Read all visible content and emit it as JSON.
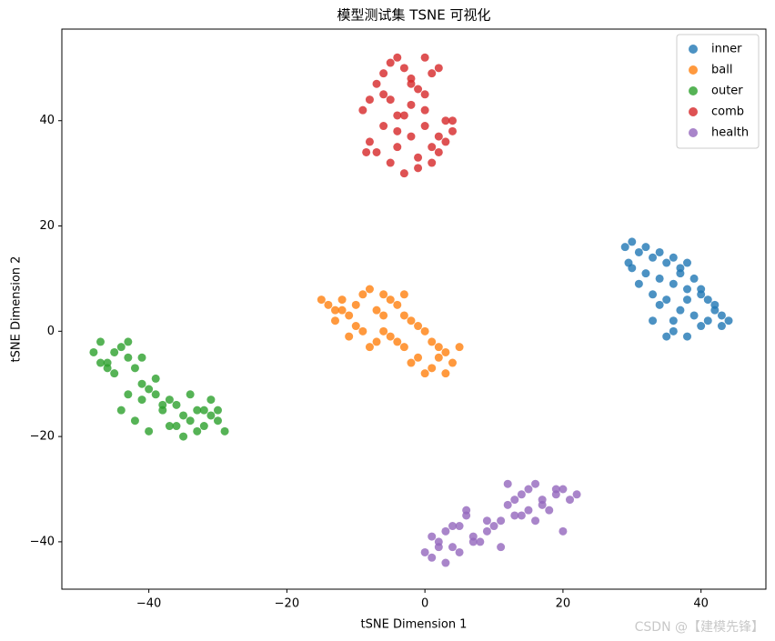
{
  "chart_data": {
    "type": "scatter",
    "title": "模型测试集 TSNE 可视化",
    "x_label": "tSNE Dimension 1",
    "y_label": "tSNE Dimension 2",
    "xlim": [
      -52.6,
      49.4
    ],
    "ylim": [
      -49.0,
      57.4
    ],
    "xticks": [
      {
        "value": -40,
        "label": "−40"
      },
      {
        "value": -20,
        "label": "−20"
      },
      0,
      20,
      40
    ],
    "yticks": [
      {
        "value": -40,
        "label": "−40"
      },
      {
        "value": -20,
        "label": "−20"
      },
      0,
      20,
      40
    ],
    "legend": "upper-right",
    "grid": false,
    "annotation": "CSDN @【建模先锋】",
    "series": [
      {
        "name": "inner",
        "color": "#1f77b4",
        "x": [
          29,
          30,
          31,
          32,
          33,
          34,
          35,
          36,
          37,
          38,
          30,
          32,
          34,
          36,
          38,
          40,
          41,
          42,
          43,
          44,
          31,
          33,
          35,
          37,
          39,
          41,
          43,
          36,
          38,
          40,
          34,
          36,
          37,
          39,
          42,
          35,
          33,
          40,
          38,
          29.5
        ],
        "y": [
          16,
          17,
          15,
          16,
          14,
          15,
          13,
          14,
          12,
          13,
          12,
          11,
          10,
          9,
          8,
          7,
          6,
          5,
          3,
          2,
          9,
          7,
          6,
          4,
          3,
          2,
          1,
          0,
          -1,
          1,
          5,
          2,
          11,
          10,
          4,
          -1,
          2,
          8,
          6,
          13
        ]
      },
      {
        "name": "ball",
        "color": "#ff7f0e",
        "x": [
          -15,
          -14,
          -13,
          -12,
          -11,
          -10,
          -9,
          -8,
          -7,
          -6,
          -5,
          -4,
          -3,
          -2,
          -1,
          0,
          1,
          2,
          3,
          4,
          5,
          -13,
          -11,
          -9,
          -7,
          -5,
          -3,
          -1,
          1,
          3,
          -10,
          -8,
          -6,
          -4,
          -2,
          0,
          2,
          -12,
          -6,
          -3
        ],
        "y": [
          6,
          5,
          4,
          6,
          3,
          5,
          7,
          8,
          4,
          7,
          6,
          5,
          3,
          2,
          1,
          0,
          -2,
          -3,
          -4,
          -6,
          -3,
          2,
          -1,
          0,
          -2,
          -1,
          -3,
          -5,
          -7,
          -8,
          1,
          -3,
          0,
          -2,
          -6,
          -8,
          -5,
          4,
          3,
          7
        ]
      },
      {
        "name": "outer",
        "color": "#2ca02c",
        "x": [
          -48,
          -47,
          -46,
          -45,
          -44,
          -43,
          -42,
          -41,
          -40,
          -39,
          -38,
          -37,
          -36,
          -35,
          -34,
          -33,
          -32,
          -31,
          -30,
          -29,
          -47,
          -45,
          -43,
          -41,
          -39,
          -37,
          -35,
          -33,
          -31,
          -44,
          -42,
          -40,
          -38,
          -36,
          -34,
          -32,
          -43,
          -41,
          -46,
          -30
        ],
        "y": [
          -4,
          -2,
          -6,
          -8,
          -3,
          -5,
          -7,
          -10,
          -11,
          -12,
          -15,
          -13,
          -14,
          -16,
          -17,
          -19,
          -18,
          -13,
          -17,
          -19,
          -6,
          -4,
          -2,
          -5,
          -9,
          -18,
          -20,
          -15,
          -16,
          -15,
          -17,
          -19,
          -14,
          -18,
          -12,
          -15,
          -12,
          -13,
          -7,
          -15
        ]
      },
      {
        "name": "comb",
        "color": "#d62728",
        "x": [
          -9,
          -8,
          -7,
          -6,
          -5,
          -4,
          -3,
          -2,
          -1,
          0,
          1,
          2,
          3,
          4,
          -8,
          -6,
          -4,
          -2,
          0,
          2,
          4,
          -7,
          -5,
          -3,
          -1,
          1,
          3,
          -6,
          -4,
          -2,
          0,
          2,
          -5,
          -3,
          -1,
          1,
          -4,
          -2,
          0,
          -8.5
        ],
        "y": [
          42,
          44,
          47,
          49,
          51,
          52,
          50,
          48,
          46,
          45,
          49,
          50,
          40,
          38,
          36,
          39,
          41,
          43,
          42,
          37,
          40,
          34,
          32,
          30,
          33,
          35,
          36,
          45,
          38,
          37,
          39,
          34,
          44,
          41,
          31,
          32,
          35,
          47,
          52,
          34
        ]
      },
      {
        "name": "health",
        "color": "#9467bd",
        "x": [
          0,
          1,
          2,
          3,
          4,
          5,
          6,
          7,
          8,
          9,
          10,
          11,
          12,
          13,
          14,
          15,
          16,
          17,
          18,
          19,
          20,
          21,
          22,
          1,
          3,
          5,
          7,
          9,
          11,
          13,
          15,
          17,
          19,
          2,
          4,
          6,
          12,
          14,
          16,
          20
        ],
        "y": [
          -42,
          -43,
          -40,
          -38,
          -41,
          -37,
          -35,
          -39,
          -40,
          -36,
          -37,
          -41,
          -33,
          -32,
          -31,
          -30,
          -29,
          -32,
          -34,
          -31,
          -30,
          -32,
          -31,
          -39,
          -44,
          -42,
          -40,
          -38,
          -36,
          -35,
          -34,
          -33,
          -30,
          -41,
          -37,
          -34,
          -29,
          -35,
          -36,
          -38
        ]
      }
    ]
  }
}
